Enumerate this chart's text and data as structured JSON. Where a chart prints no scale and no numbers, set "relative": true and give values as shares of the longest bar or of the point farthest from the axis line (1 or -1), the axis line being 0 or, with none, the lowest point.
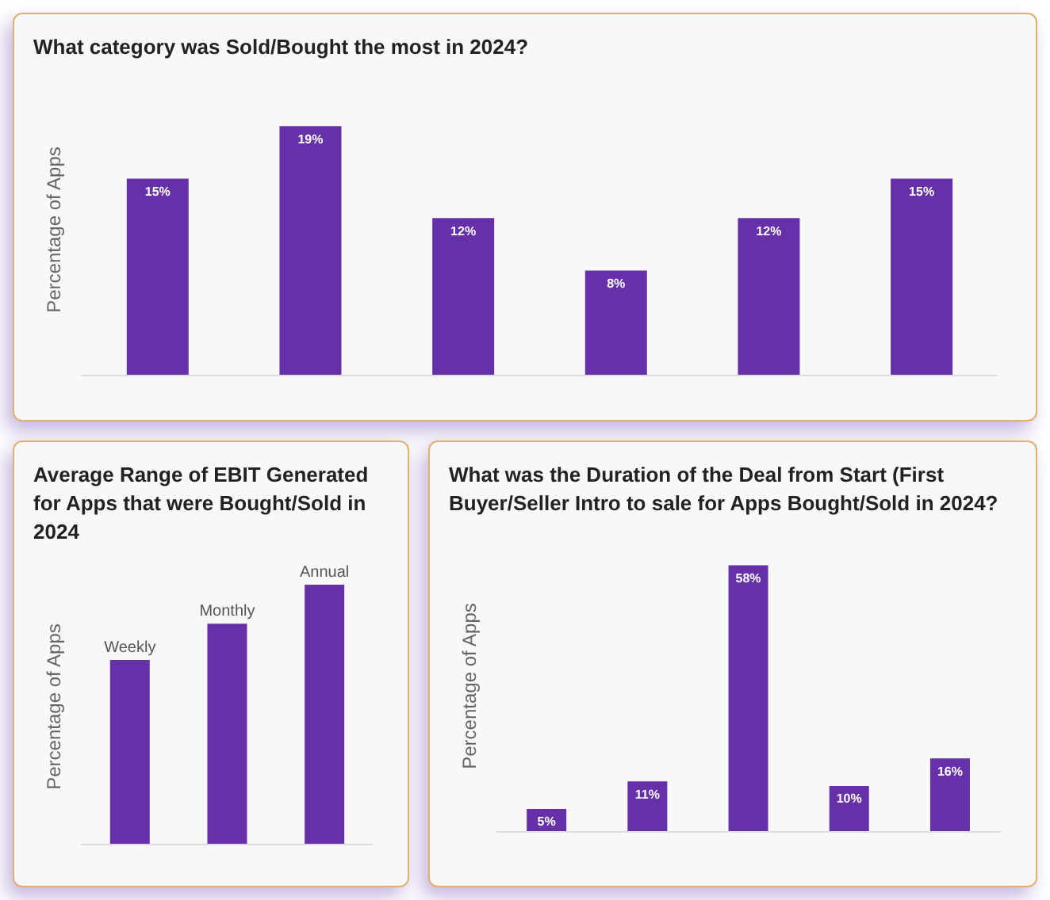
{
  "chart_data": [
    {
      "type": "bar",
      "title": "What category was Sold/Bought the most in 2024?",
      "ylabel": "Percentage of Apps",
      "categories": [
        null,
        null,
        null,
        null,
        null,
        null
      ],
      "values": [
        15,
        19,
        12,
        8,
        12,
        15
      ],
      "value_labels": [
        "15%",
        "19%",
        "12%",
        "8%",
        "12%",
        "15%"
      ],
      "color": "#6530a8",
      "tick_labels": false
    },
    {
      "type": "bar",
      "title": "What was the Duration of the Deal from Start (First Buyer/Seller Intro to sale for Apps Bought/Sold in 2024?",
      "ylabel": "Percentage of Apps",
      "categories": [
        null,
        null,
        null,
        null,
        null
      ],
      "values": [
        5,
        11,
        58,
        10,
        16
      ],
      "value_labels": [
        "5%",
        "11%",
        "58%",
        "10%",
        "16%"
      ],
      "color": "#6530a8",
      "tick_labels": false
    },
    {
      "type": "bar",
      "title": "Average Range of EBIT Generated for Apps that were Bought/Sold in 2024",
      "ylabel": "Percentage of Apps",
      "categories": [
        "Weekly",
        "Monthly",
        "Annual"
      ],
      "values": [
        0.71,
        0.85,
        1
      ],
      "relative": true,
      "color": "#6530a8",
      "tick_labels": "x"
    }
  ]
}
